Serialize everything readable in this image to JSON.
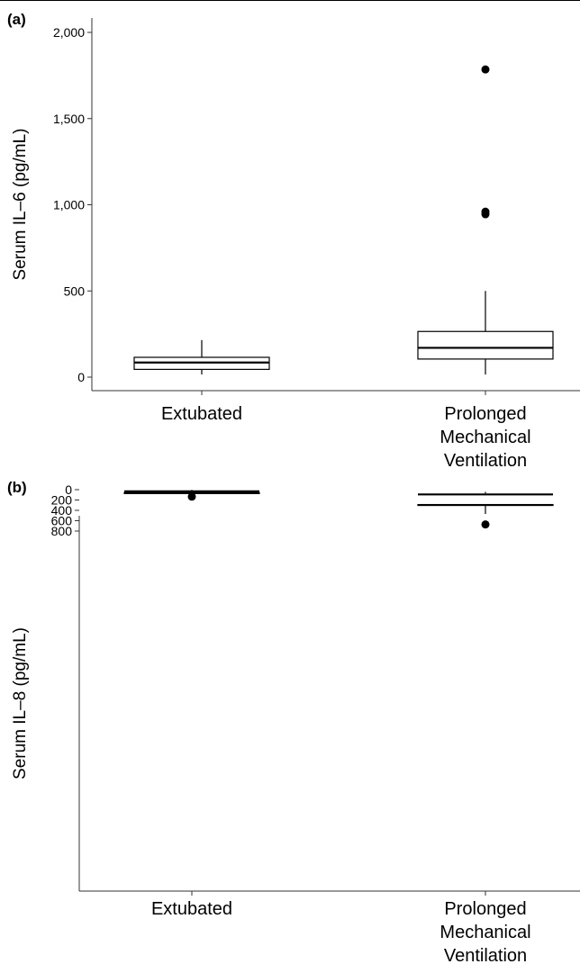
{
  "chart_data": [
    {
      "panel_label": "(a)",
      "type": "box",
      "ylabel": "Serum IL–6 (pg/mL)",
      "ylim": [
        0,
        2000
      ],
      "yticks": [
        0,
        500,
        1000,
        1500,
        2000
      ],
      "ytick_labels": [
        "0",
        "500",
        "1,000",
        "1,500",
        "2,000"
      ],
      "groups": [
        {
          "label_lines": [
            "Extubated"
          ],
          "whisker_low": 15,
          "q1": 45,
          "median": 85,
          "q3": 115,
          "whisker_high": 215,
          "outliers": []
        },
        {
          "label_lines": [
            "Prolonged",
            "Mechanical",
            "Ventilation"
          ],
          "whisker_low": 15,
          "q1": 105,
          "median": 170,
          "q3": 265,
          "whisker_high": 500,
          "outliers": [
            1785,
            960,
            945
          ]
        }
      ],
      "grid": false,
      "legend": "none"
    },
    {
      "panel_label": "(b)",
      "type": "box",
      "ylabel": "Serum IL–8 (pg/mL)",
      "ylim": [
        0,
        800
      ],
      "yticks": [
        0,
        200,
        400,
        600,
        800
      ],
      "ytick_labels": [
        "0",
        "200",
        "400",
        "600",
        "800"
      ],
      "groups": [
        {
          "label_lines": [
            "Extubated"
          ],
          "whisker_low": 5,
          "q1": 20,
          "median": 32,
          "q3": 58,
          "whisker_high": 110,
          "outliers": [
            135
          ]
        },
        {
          "label_lines": [
            "Prolonged",
            "Mechanical",
            "Ventilation"
          ],
          "whisker_low": 42,
          "q1": 73,
          "median": 92,
          "q3": 288,
          "whisker_high": 470,
          "outliers": [
            672
          ]
        }
      ],
      "grid": false,
      "legend": "none"
    }
  ]
}
